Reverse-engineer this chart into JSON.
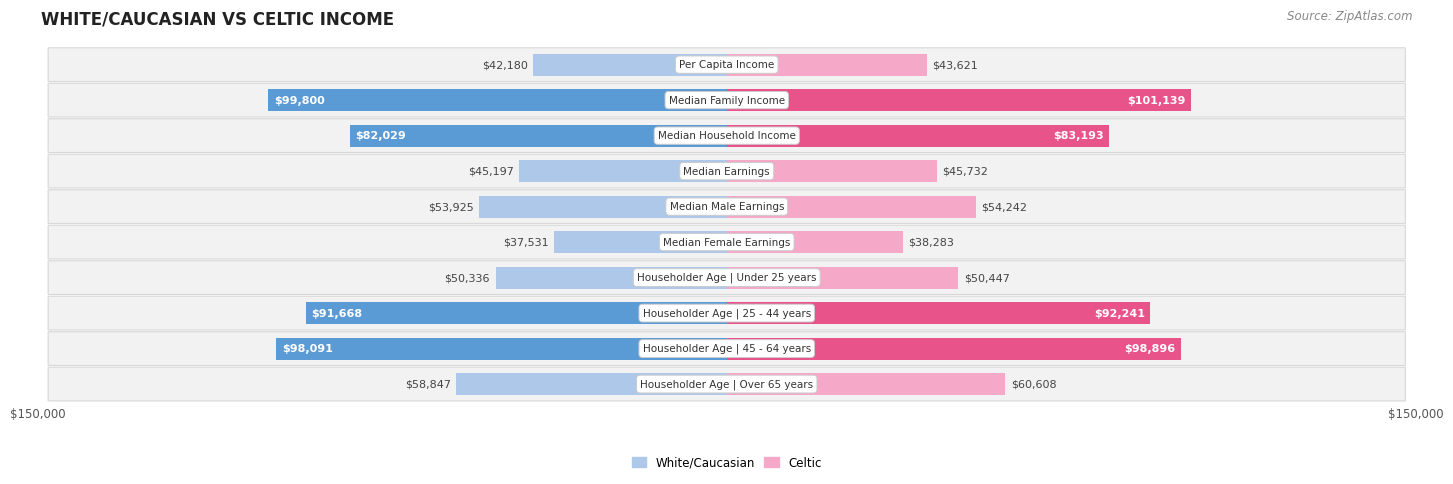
{
  "title": "WHITE/CAUCASIAN VS CELTIC INCOME",
  "source": "Source: ZipAtlas.com",
  "categories": [
    "Per Capita Income",
    "Median Family Income",
    "Median Household Income",
    "Median Earnings",
    "Median Male Earnings",
    "Median Female Earnings",
    "Householder Age | Under 25 years",
    "Householder Age | 25 - 44 years",
    "Householder Age | 45 - 64 years",
    "Householder Age | Over 65 years"
  ],
  "white_values": [
    42180,
    99800,
    82029,
    45197,
    53925,
    37531,
    50336,
    91668,
    98091,
    58847
  ],
  "celtic_values": [
    43621,
    101139,
    83193,
    45732,
    54242,
    38283,
    50447,
    92241,
    98896,
    60608
  ],
  "white_color_light": "#adc8e8",
  "white_color_dark": "#5b9bd5",
  "celtic_color_light": "#f5a8c8",
  "celtic_color_dark": "#e8538a",
  "max_value": 150000,
  "label_white": "White/Caucasian",
  "label_celtic": "Celtic",
  "x_tick_label_left": "$150,000",
  "x_tick_label_right": "$150,000",
  "background_color": "#ffffff",
  "row_bg_color": "#f2f2f2",
  "row_border_color": "#d8d8d8",
  "title_fontsize": 12,
  "source_fontsize": 8.5,
  "bar_label_fontsize": 8,
  "category_fontsize": 7.5,
  "threshold": 70000
}
